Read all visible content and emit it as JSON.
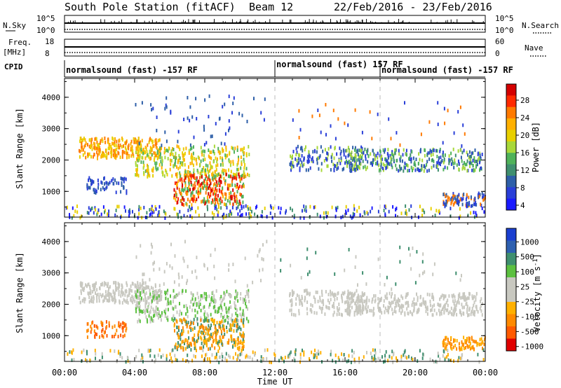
{
  "header": {
    "station": "South Pole Station (fitACF)",
    "beam": "Beam 12",
    "dates": "22/Feb/2016 - 23/Feb/2016"
  },
  "side_labels": {
    "nsky": "N.Sky",
    "freq_line1": "Freq.",
    "freq_line2": "[MHz]",
    "cpid": "CPID",
    "nsearch": "N.Search",
    "nave": "Nave",
    "nsky_hi": "10^5",
    "nsky_lo": "10^0",
    "freq_hi": "18",
    "freq_lo": "8",
    "nave_hi": "60",
    "nave_lo": "0"
  },
  "cpid_segments": [
    {
      "label": "normalsound (fast) -157 RF",
      "start": 0
    },
    {
      "label": "normalsound (fast) 157 RF",
      "start": 12
    },
    {
      "label": "normalsound (fast) -157 RF",
      "start": 18
    }
  ],
  "chart_data": [
    {
      "type": "heatmap",
      "parameter": "Power",
      "colorbar_label": "Power [dB]",
      "colorbar_ticks": [
        "28",
        "24",
        "20",
        "16",
        "12",
        "8",
        "4"
      ],
      "colorbar_colors": [
        "#d40000",
        "#ff2a00",
        "#ff7a00",
        "#ffb000",
        "#e8d000",
        "#a8d83a",
        "#4fb25a",
        "#3f8f6f",
        "#2e5fa8",
        "#2a3fd8",
        "#1a1aff"
      ],
      "ylabel": "Slant Range [km]",
      "yticks": [
        "1000",
        "2000",
        "3000",
        "4000"
      ],
      "ylim": [
        180,
        4600
      ],
      "xlim": [
        0,
        24
      ],
      "xticks": [
        "00:00",
        "04:00",
        "08:00",
        "12:00",
        "16:00",
        "20:00",
        "00:00"
      ],
      "xlabel": "Time UT"
    },
    {
      "type": "heatmap",
      "parameter": "Velocity",
      "colorbar_label": "Velocity [m s^-1]",
      "colorbar_ticks": [
        "1000",
        "500",
        "100",
        "25",
        "-25",
        "-100",
        "-500",
        "-1000"
      ],
      "colorbar_colors": [
        "#1a3fd0",
        "#2e60b0",
        "#3f8f6f",
        "#5cc040",
        "#c8c8c0",
        "#c8c8c0",
        "#ffb000",
        "#ff8a00",
        "#ff5a00",
        "#e00000"
      ],
      "ylabel": "Slant Range [km]",
      "yticks": [
        "1000",
        "2000",
        "3000",
        "4000"
      ],
      "ylim": [
        180,
        4600
      ],
      "xlim": [
        0,
        24
      ],
      "xticks": [
        "00:00",
        "04:00",
        "08:00",
        "12:00",
        "16:00",
        "20:00",
        "00:00"
      ],
      "xlabel": "Time UT"
    }
  ]
}
